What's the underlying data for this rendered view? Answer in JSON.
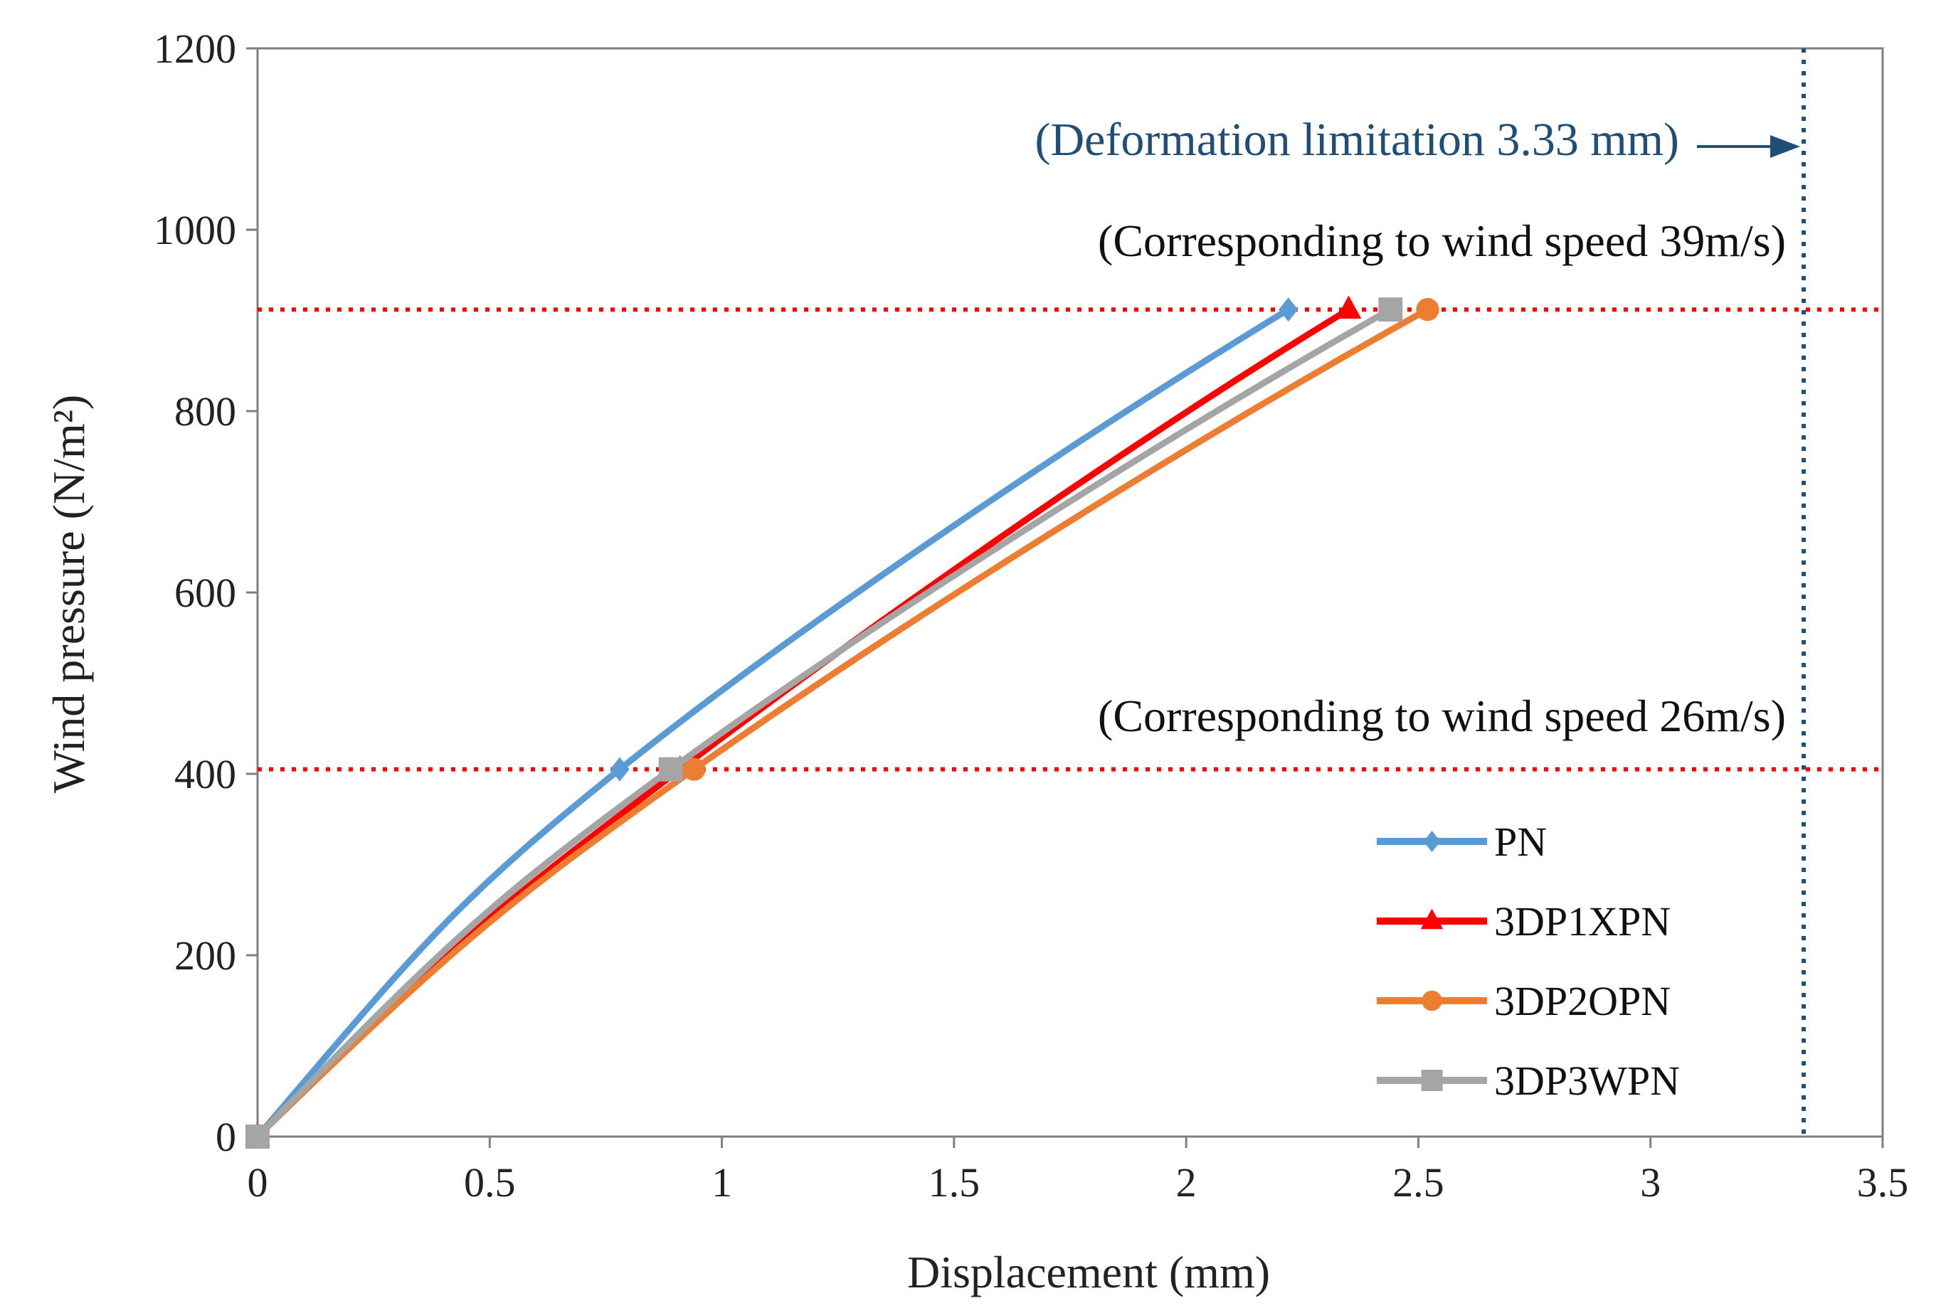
{
  "chart_data": {
    "type": "line",
    "title": "",
    "xlabel": "Displacement (mm)",
    "ylabel": "Wind pressure (N/m²)",
    "xlim": [
      0,
      3.5
    ],
    "ylim": [
      0,
      1200
    ],
    "xticks": [
      0,
      0.5,
      1,
      1.5,
      2,
      2.5,
      3,
      3.5
    ],
    "xtick_labels": [
      "0",
      "0.5",
      "1",
      "1.5",
      "2",
      "2.5",
      "3",
      "3.5"
    ],
    "yticks": [
      0,
      200,
      400,
      600,
      800,
      1000,
      1200
    ],
    "ytick_labels": [
      "0",
      "200",
      "400",
      "600",
      "800",
      "1000",
      "1200"
    ],
    "grid": false,
    "legend_position": "bottom-right",
    "series": [
      {
        "name": "PN",
        "color": "#5b9bd5",
        "marker": "diamond",
        "x": [
          0,
          0.78,
          2.22
        ],
        "y": [
          0,
          405,
          912
        ]
      },
      {
        "name": "3DP1XPN",
        "color": "#ff0000",
        "marker": "triangle",
        "x": [
          0,
          0.91,
          2.35
        ],
        "y": [
          0,
          405,
          912
        ]
      },
      {
        "name": "3DP2OPN",
        "color": "#ed7d31",
        "marker": "circle",
        "x": [
          0,
          0.94,
          2.52
        ],
        "y": [
          0,
          405,
          912
        ]
      },
      {
        "name": "3DP3WPN",
        "color": "#a5a5a5",
        "marker": "square",
        "x": [
          0,
          0.89,
          2.44
        ],
        "y": [
          0,
          405,
          912
        ]
      }
    ],
    "reference_lines": [
      {
        "orientation": "horizontal",
        "value": 912,
        "color": "#ff0000",
        "style": "dotted"
      },
      {
        "orientation": "horizontal",
        "value": 405,
        "color": "#ff0000",
        "style": "dotted"
      },
      {
        "orientation": "vertical",
        "value": 3.33,
        "color": "#1f4e79",
        "style": "dotted"
      }
    ],
    "annotations": {
      "deformation_limit": "(Deformation limitation 3.33 mm)",
      "wind_speed_39": "(Corresponding to wind speed 39m/s)",
      "wind_speed_26": "(Corresponding to wind speed 26m/s)"
    },
    "annotation_color": "#1f4e79"
  }
}
